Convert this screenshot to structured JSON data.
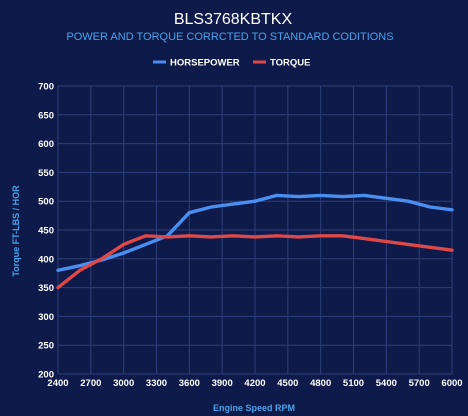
{
  "chart_data": {
    "type": "line",
    "title": "BLS3768KBTKX",
    "subtitle": "POWER AND TORQUE CORRCTED TO STANDARD CODITIONS",
    "xlabel": "Engine Speed RPM",
    "ylabel": "Torque FT-LBS / HOR",
    "xlim": [
      2400,
      6000
    ],
    "ylim": [
      200,
      700
    ],
    "xticks": [
      2400,
      2700,
      3000,
      3300,
      3600,
      3900,
      4200,
      4500,
      4800,
      5100,
      5400,
      5700,
      6000
    ],
    "yticks": [
      200,
      250,
      300,
      350,
      400,
      450,
      500,
      550,
      600,
      650,
      700
    ],
    "grid": true,
    "legend_position": "top-center",
    "x": [
      2400,
      2600,
      2800,
      3000,
      3200,
      3400,
      3600,
      3800,
      4000,
      4200,
      4400,
      4600,
      4800,
      5000,
      5200,
      5400,
      5600,
      5800,
      6000
    ],
    "series": [
      {
        "name": "HORSEPOWER",
        "color": "#4a8ff0",
        "values": [
          380,
          388,
          398,
          410,
          425,
          440,
          480,
          490,
          495,
          500,
          510,
          508,
          510,
          508,
          510,
          505,
          500,
          490,
          485
        ]
      },
      {
        "name": "TORQUE",
        "color": "#e04848",
        "values": [
          350,
          380,
          400,
          425,
          440,
          438,
          440,
          438,
          440,
          438,
          440,
          438,
          440,
          440,
          435,
          430,
          425,
          420,
          415
        ]
      }
    ]
  }
}
